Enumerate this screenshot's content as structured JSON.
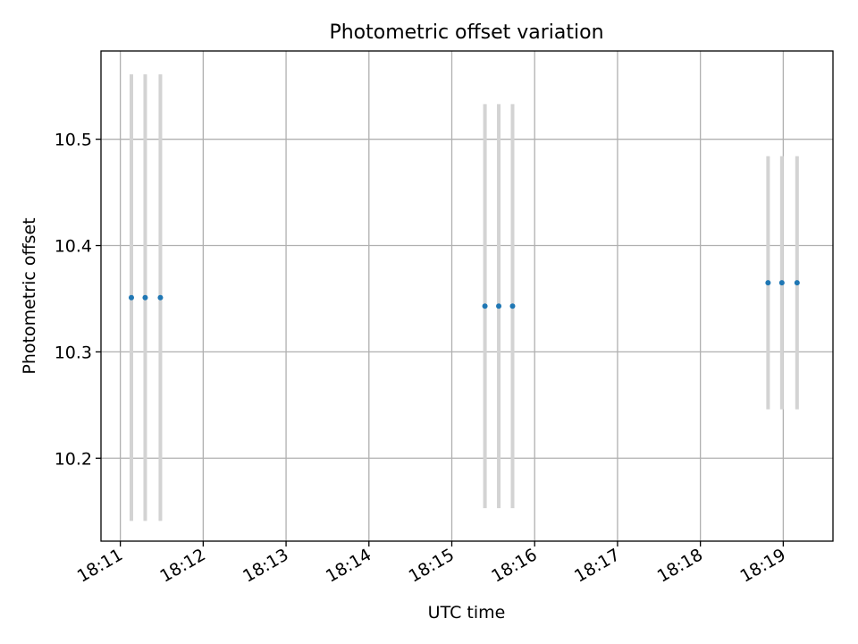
{
  "chart_data": {
    "type": "scatter",
    "title": "Photometric offset variation",
    "xlabel": "UTC time",
    "ylabel": "Photometric offset",
    "xlim": [
      "18:10:46",
      "18:19:36"
    ],
    "ylim": [
      10.122,
      10.583
    ],
    "xticks": [
      "18:11",
      "18:12",
      "18:13",
      "18:14",
      "18:15",
      "18:16",
      "18:17",
      "18:18",
      "18:19"
    ],
    "yticks": [
      10.2,
      10.3,
      10.4,
      10.5
    ],
    "grid": true,
    "points_color": "#1f77b4",
    "errorbar_color": "#d3d3d3",
    "series": [
      {
        "points": [
          {
            "x": "18:11:08",
            "y": 10.351,
            "err": 0.21
          },
          {
            "x": "18:11:18",
            "y": 10.351,
            "err": 0.21
          },
          {
            "x": "18:11:29",
            "y": 10.351,
            "err": 0.21
          },
          {
            "x": "18:15:24",
            "y": 10.343,
            "err": 0.19
          },
          {
            "x": "18:15:34",
            "y": 10.343,
            "err": 0.19
          },
          {
            "x": "18:15:44",
            "y": 10.343,
            "err": 0.19
          },
          {
            "x": "18:18:49",
            "y": 10.365,
            "err": 0.119
          },
          {
            "x": "18:18:59",
            "y": 10.365,
            "err": 0.119
          },
          {
            "x": "18:19:10",
            "y": 10.365,
            "err": 0.119
          }
        ]
      }
    ]
  }
}
